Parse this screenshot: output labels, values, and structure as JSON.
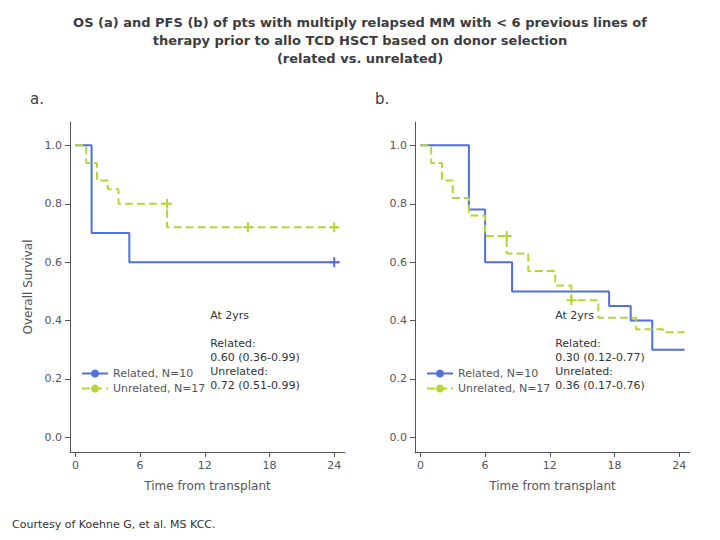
{
  "chart_data": [
    {
      "type": "step",
      "title": "OS (a) and PFS (b) of pts with multiply relapsed MM with < 6 previous lines of\ntherapy prior to allo TCD HSCT based on donor selection\n(related vs. unrelated)",
      "subtitle": "a.",
      "footer": "Courtesy of Koehne G, et al. MS KCC.",
      "xlabel": "Time from transplant",
      "ylabel": "Overall Survival",
      "xlim": [
        -0.5,
        25
      ],
      "ylim": [
        -0.05,
        1.08
      ],
      "xticks": [
        0,
        6,
        12,
        18,
        24
      ],
      "yticks": [
        {
          "value": 0.0,
          "label": "0.0"
        },
        0.2,
        0.4,
        0.6,
        0.8,
        {
          "value": 1.0,
          "label": "1.0"
        }
      ],
      "grid": false,
      "legend": "lower left",
      "annotations": [
        {
          "text": "At 2yrs\n\nRelated:\n0.60 (0.36-0.99)\nUnrelated:\n0.72 (0.51-0.99)",
          "x": 12.5,
          "y": 0.44
        }
      ],
      "series": [
        {
          "name": "Related, N=10",
          "line_style": "solid",
          "x": [
            0,
            1.5,
            1.5,
            5.0,
            5.0,
            24.5
          ],
          "values": [
            1.0,
            1.0,
            0.7,
            0.7,
            0.6,
            0.6
          ],
          "censors": {
            "marker": "plus",
            "x": [
              24.0
            ],
            "y": [
              0.6
            ]
          }
        },
        {
          "name": "Unrelated, N=17",
          "line_style": "dashed",
          "x": [
            0,
            1.0,
            1.0,
            2.0,
            2.0,
            3.0,
            3.0,
            4.0,
            4.0,
            5.5,
            5.5,
            8.5,
            8.5,
            14.5,
            14.5,
            16.0,
            16.0,
            24.5
          ],
          "values": [
            1.0,
            1.0,
            0.94,
            0.94,
            0.88,
            0.88,
            0.85,
            0.85,
            0.8,
            0.8,
            0.8,
            0.8,
            0.72,
            0.72,
            0.72,
            0.72,
            0.72,
            0.72
          ],
          "censors": {
            "marker": "plus",
            "x": [
              8.5,
              16.0,
              24.0
            ],
            "y": [
              0.8,
              0.72,
              0.72
            ]
          }
        }
      ]
    },
    {
      "type": "step",
      "subtitle": "b.",
      "xlabel": "Time from transplant",
      "xlim": [
        -0.5,
        25
      ],
      "ylim": [
        -0.05,
        1.08
      ],
      "xticks": [
        0,
        6,
        12,
        18,
        24
      ],
      "yticks": [
        {
          "value": 0.0,
          "label": "0.0"
        },
        0.2,
        0.4,
        0.6,
        0.8,
        {
          "value": 1.0,
          "label": "1.0"
        }
      ],
      "grid": false,
      "legend": "lower left",
      "annotations": [
        {
          "text": "At 2yrs\n\nRelated:\n0.30 (0.12-0.77)\nUnrelated:\n0.36 (0.17-0.76)",
          "x": 12.5,
          "y": 0.44
        }
      ],
      "series": [
        {
          "name": "Related, N=10",
          "line_style": "solid",
          "x": [
            0,
            4.5,
            4.5,
            6.0,
            6.0,
            8.5,
            8.5,
            11.5,
            11.5,
            17.5,
            17.5,
            19.5,
            19.5,
            21.5,
            21.5,
            23.0,
            23.0,
            24.5
          ],
          "values": [
            1.0,
            1.0,
            0.78,
            0.78,
            0.6,
            0.6,
            0.5,
            0.5,
            0.5,
            0.5,
            0.45,
            0.45,
            0.4,
            0.4,
            0.3,
            0.3,
            0.3,
            0.3
          ],
          "censors": {
            "marker": "plus",
            "x": [],
            "y": []
          }
        },
        {
          "name": "Unrelated, N=17",
          "line_style": "dashed",
          "x": [
            0,
            1.0,
            1.0,
            2.0,
            2.0,
            3.0,
            3.0,
            4.5,
            4.5,
            6.0,
            6.0,
            8.0,
            8.0,
            10.0,
            10.0,
            12.5,
            12.5,
            14.0,
            14.0,
            16.5,
            16.5,
            20.0,
            20.0,
            22.5,
            22.5,
            24.5
          ],
          "values": [
            1.0,
            1.0,
            0.94,
            0.94,
            0.88,
            0.88,
            0.82,
            0.82,
            0.76,
            0.76,
            0.69,
            0.69,
            0.63,
            0.63,
            0.57,
            0.57,
            0.52,
            0.52,
            0.47,
            0.47,
            0.41,
            0.41,
            0.37,
            0.37,
            0.36,
            0.36
          ],
          "censors": {
            "marker": "plus",
            "x": [
              8.0,
              14.0
            ],
            "y": [
              0.69,
              0.47
            ]
          }
        }
      ]
    }
  ]
}
